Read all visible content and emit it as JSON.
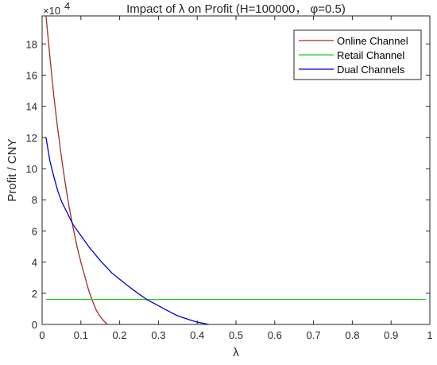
{
  "chart_data": {
    "type": "line",
    "title": "Impact of λ on Profit (H=100000， φ=0.5)",
    "xlabel": "λ",
    "ylabel": "Profit / CNY",
    "y_exponent_base": "×10",
    "y_exponent_power": "4",
    "xlim": [
      0,
      1
    ],
    "ylim": [
      0,
      19.8
    ],
    "xticks": [
      0,
      0.1,
      0.2,
      0.3,
      0.4,
      0.5,
      0.6,
      0.7,
      0.8,
      0.9,
      1
    ],
    "xtick_labels": [
      "0",
      "0.1",
      "0.2",
      "0.3",
      "0.4",
      "0.5",
      "0.6",
      "0.7",
      "0.8",
      "0.9",
      "1"
    ],
    "yticks": [
      0,
      2,
      4,
      6,
      8,
      10,
      12,
      14,
      16,
      18
    ],
    "ytick_labels": [
      "0",
      "2",
      "4",
      "6",
      "8",
      "10",
      "12",
      "14",
      "16",
      "18"
    ],
    "grid": false,
    "legend_position": "top-right",
    "series": [
      {
        "name": "Online Channel",
        "color": "#a52a2a",
        "x": [
          0.01,
          0.02,
          0.03,
          0.04,
          0.05,
          0.06,
          0.07,
          0.08,
          0.09,
          0.1,
          0.11,
          0.12,
          0.13,
          0.14,
          0.15,
          0.16,
          0.168
        ],
        "y": [
          19.8,
          17.2,
          14.7,
          12.6,
          10.7,
          9.0,
          7.5,
          6.2,
          5.0,
          4.0,
          3.1,
          2.2,
          1.5,
          0.9,
          0.5,
          0.2,
          0.0
        ]
      },
      {
        "name": "Retail Channel",
        "color": "#22cc22",
        "x": [
          0.01,
          0.99
        ],
        "y": [
          1.6,
          1.6
        ]
      },
      {
        "name": "Dual Channels",
        "color": "#0000cc",
        "x": [
          0.01,
          0.02,
          0.03,
          0.04,
          0.05,
          0.06,
          0.07,
          0.08,
          0.1,
          0.12,
          0.15,
          0.18,
          0.2,
          0.22,
          0.25,
          0.27,
          0.3,
          0.33,
          0.35,
          0.38,
          0.4,
          0.42,
          0.43
        ],
        "y": [
          12.0,
          10.5,
          9.5,
          8.6,
          7.9,
          7.4,
          6.9,
          6.4,
          5.7,
          5.0,
          4.1,
          3.3,
          2.9,
          2.5,
          1.95,
          1.6,
          1.2,
          0.8,
          0.55,
          0.3,
          0.15,
          0.05,
          0.0
        ]
      }
    ]
  }
}
